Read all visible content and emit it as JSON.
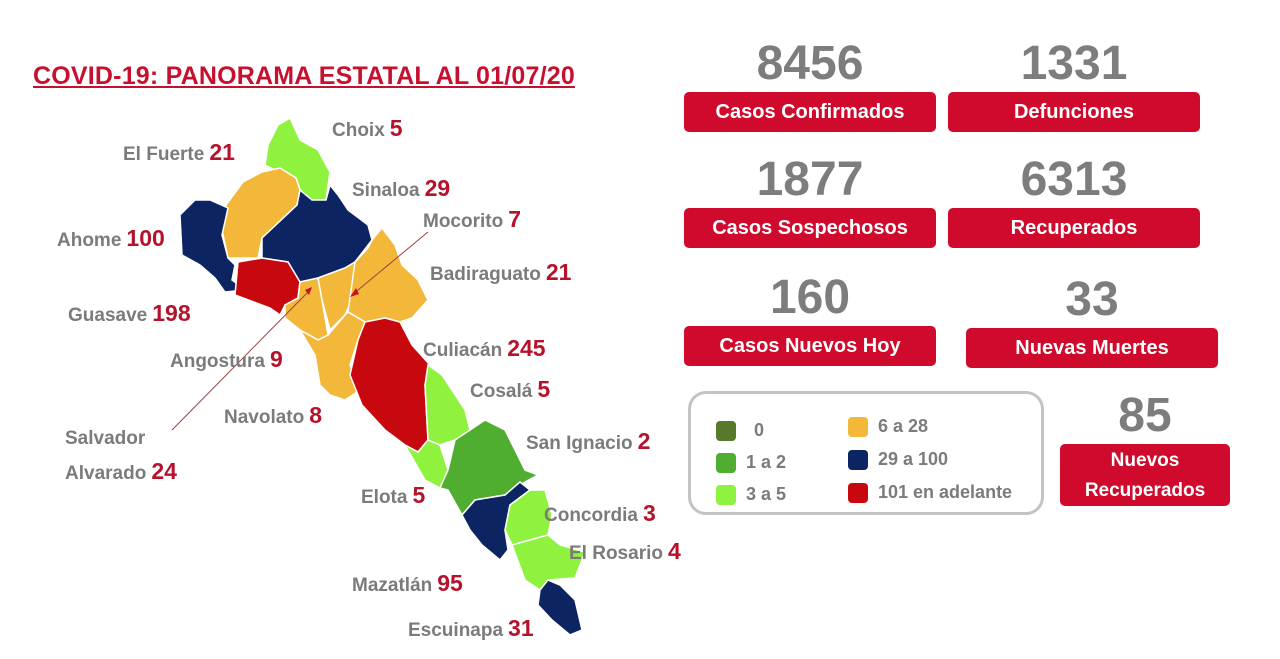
{
  "title": "COVID-19: PANORAMA ESTATAL AL 01/07/20",
  "stats": [
    {
      "value": "8456",
      "label": "Casos Confirmados"
    },
    {
      "value": "1331",
      "label": "Defunciones"
    },
    {
      "value": "1877",
      "label": "Casos Sospechosos"
    },
    {
      "value": "6313",
      "label": "Recuperados"
    },
    {
      "value": "160",
      "label": "Casos Nuevos Hoy"
    },
    {
      "value": "33",
      "label": "Nuevas Muertes"
    },
    {
      "value": "85",
      "label": "Nuevos Recuperados"
    }
  ],
  "legend": [
    {
      "label": "0",
      "color": "#577a2a"
    },
    {
      "label": "1 a 2",
      "color": "#4fae2f"
    },
    {
      "label": "3 a 5",
      "color": "#8ff23f"
    },
    {
      "label": "6 a 28",
      "color": "#f3b73a"
    },
    {
      "label": "29 a 100",
      "color": "#0c2461"
    },
    {
      "label": "101 en adelante",
      "color": "#c8080f"
    }
  ],
  "municipalities": [
    {
      "name": "Choix",
      "cases": "5"
    },
    {
      "name": "El Fuerte",
      "cases": "21"
    },
    {
      "name": "Sinaloa",
      "cases": "29"
    },
    {
      "name": "Ahome",
      "cases": "100"
    },
    {
      "name": "Mocorito",
      "cases": "7"
    },
    {
      "name": "Badiraguato",
      "cases": "21"
    },
    {
      "name": "Guasave",
      "cases": "198"
    },
    {
      "name": "Angostura",
      "cases": "9"
    },
    {
      "name": "Culiacán",
      "cases": "245"
    },
    {
      "name": "Cosalá",
      "cases": "5"
    },
    {
      "name": "Navolato",
      "cases": "8"
    },
    {
      "name": "Salvador Alvarado",
      "cases": "24"
    },
    {
      "name": "San Ignacio",
      "cases": "2"
    },
    {
      "name": "Elota",
      "cases": "5"
    },
    {
      "name": "Concordia",
      "cases": "3"
    },
    {
      "name": "El Rosario",
      "cases": "4"
    },
    {
      "name": "Mazatlán",
      "cases": "95"
    },
    {
      "name": "Escuinapa",
      "cases": "31"
    }
  ]
}
